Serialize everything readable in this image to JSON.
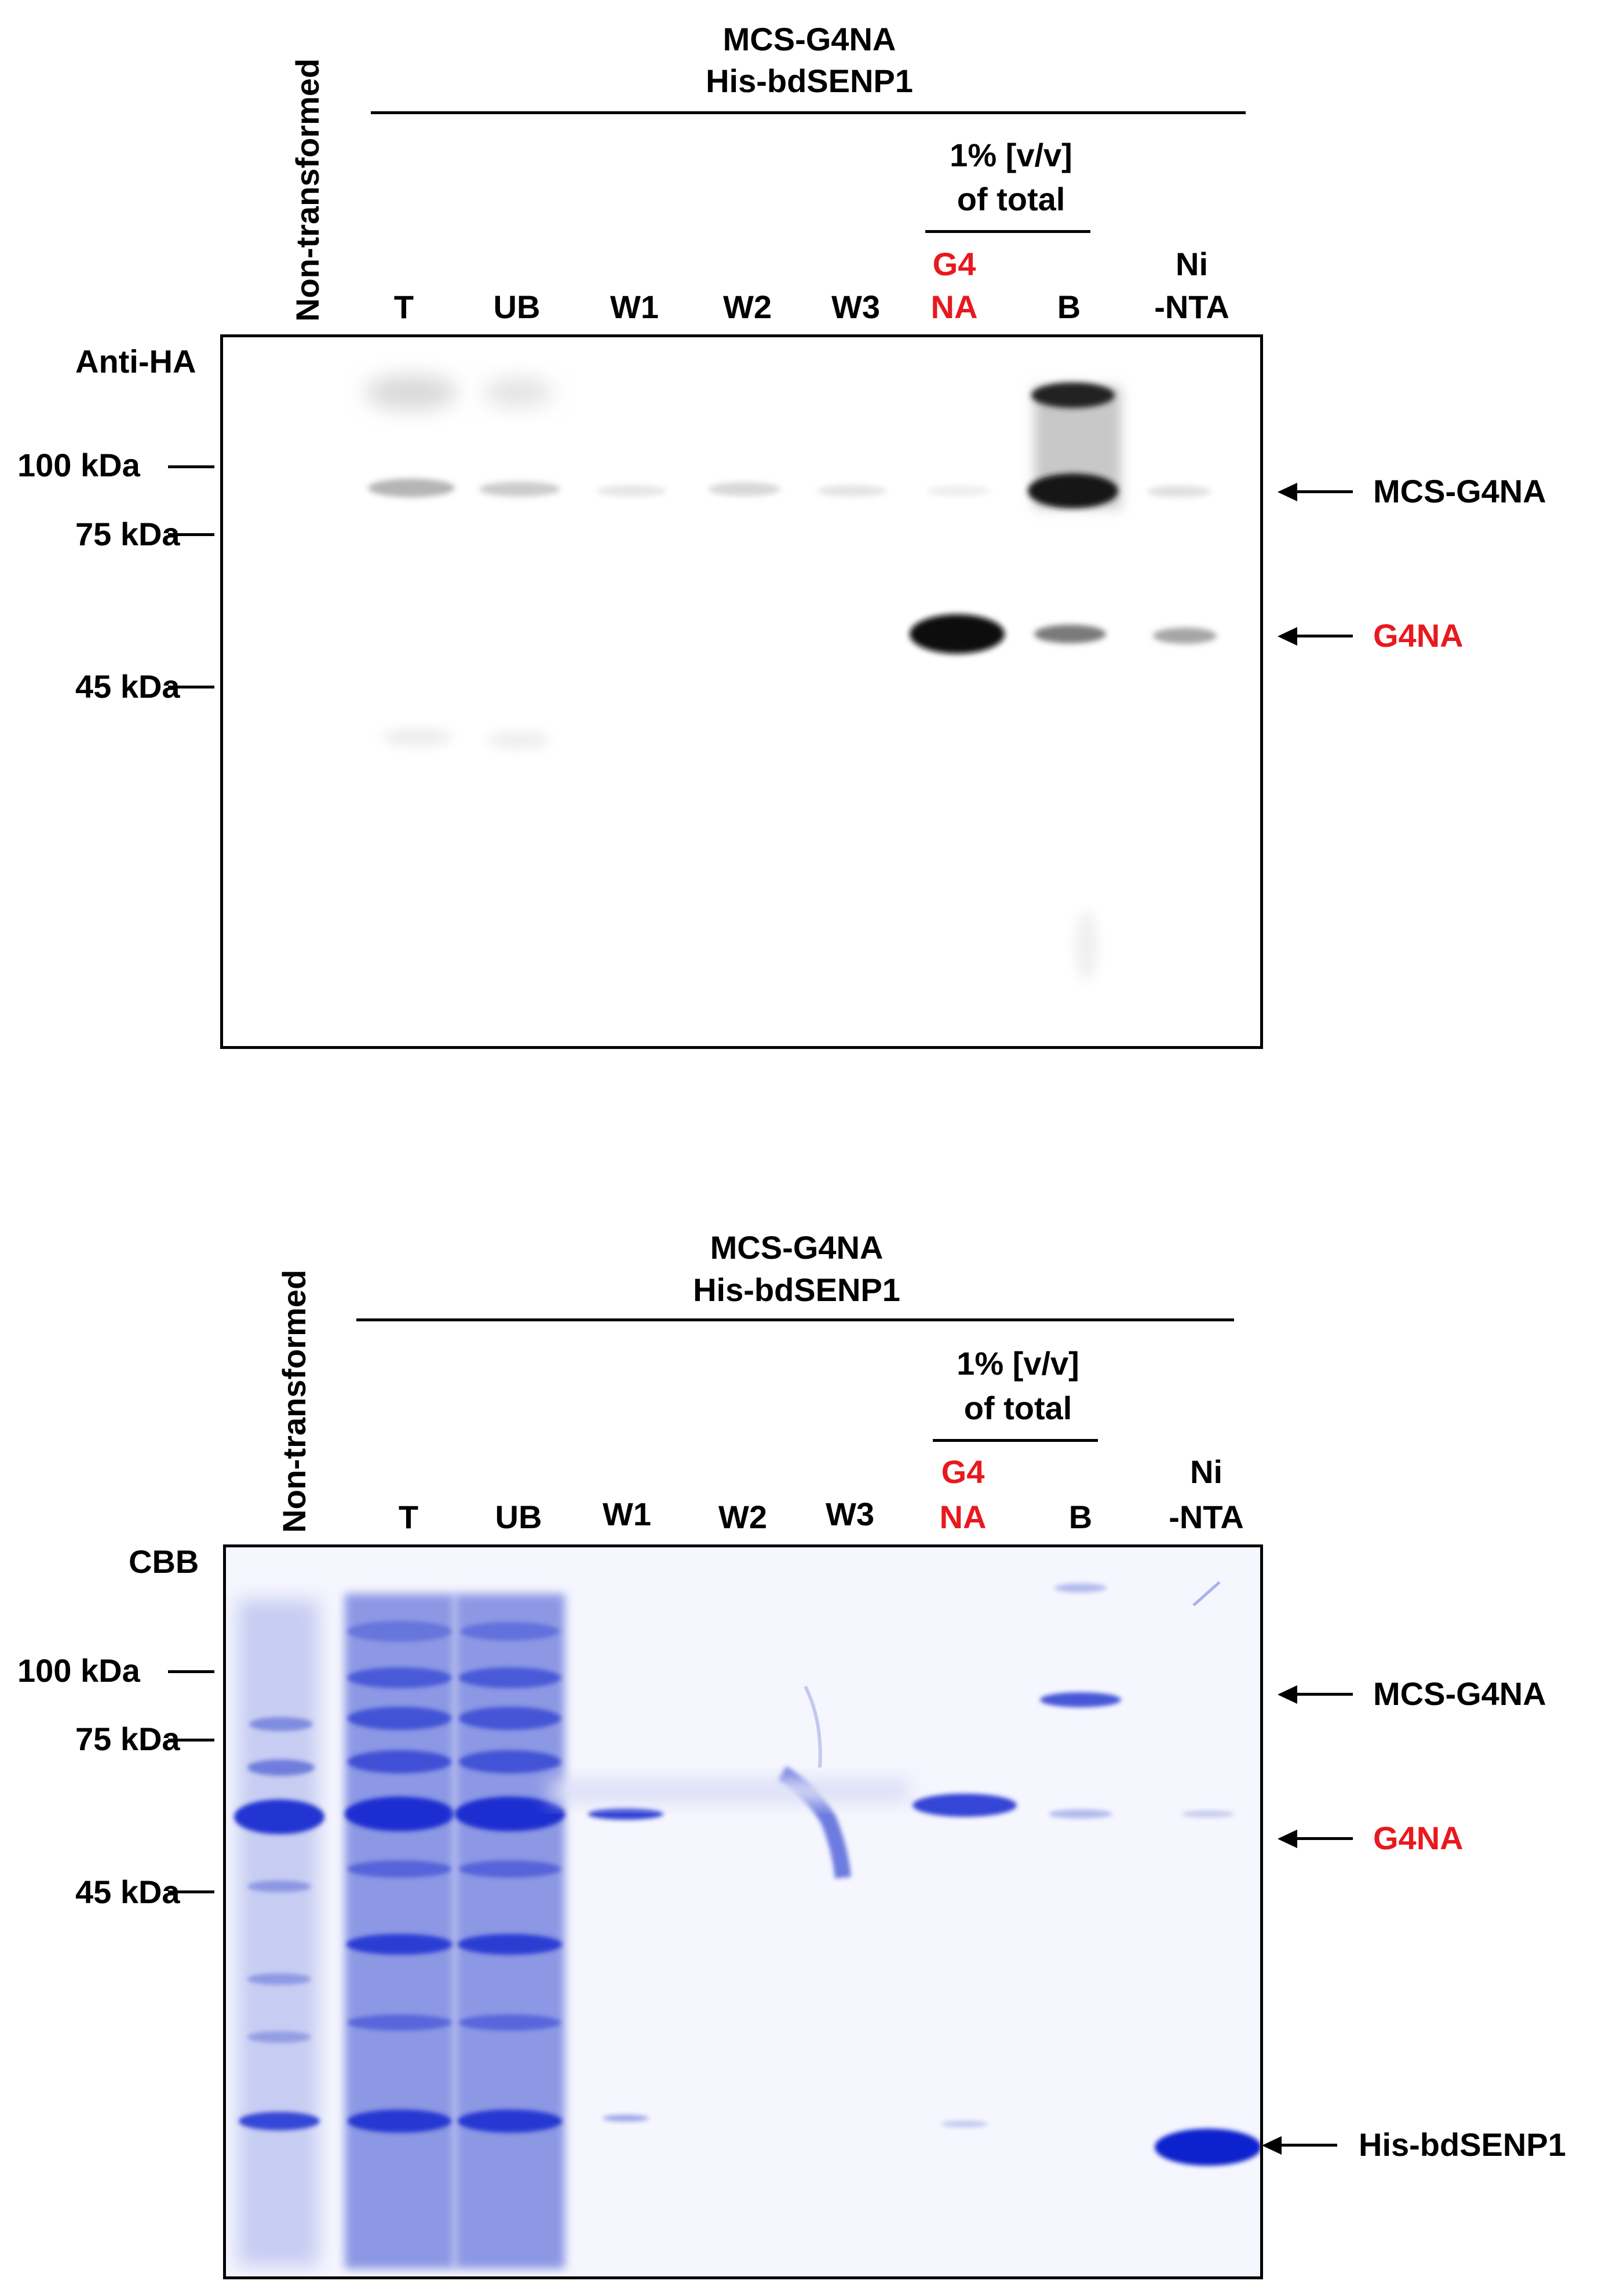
{
  "panels": [
    {
      "group_label_line1": "MCS-G4NA",
      "group_label_line2": "His-bdSENP1",
      "left_lane_label": "Non-transformed",
      "percent_label_line1": "1% [v/v]",
      "percent_label_line2": "of total",
      "lanes": [
        "T",
        "UB",
        "W1",
        "W2",
        "W3",
        "G4\nNA",
        "B",
        "Ni\n-NTA"
      ],
      "stain_label": "Anti-HA",
      "markers": [
        "100 kDa",
        "75 kDa",
        "45 kDa"
      ],
      "arrows": [
        "MCS-G4NA",
        "G4NA"
      ]
    },
    {
      "group_label_line1": "MCS-G4NA",
      "group_label_line2": "His-bdSENP1",
      "left_lane_label": "Non-transformed",
      "percent_label_line1": "1% [v/v]",
      "percent_label_line2": "of total",
      "lanes": [
        "T",
        "UB",
        "W1",
        "W2",
        "W3",
        "G4\nNA",
        "B",
        "Ni\n-NTA"
      ],
      "stain_label": "CBB",
      "markers": [
        "100 kDa",
        "75 kDa",
        "45 kDa"
      ],
      "arrows": [
        "MCS-G4NA",
        "G4NA",
        "His-bdSENP1"
      ]
    }
  ],
  "colors": {
    "highlight_red": "#e8191e",
    "cbb_blue": "#2a3fd6",
    "blot_band": "#111111"
  },
  "lane_text": {
    "p1": {
      "t": "T",
      "ub": "UB",
      "w1": "W1",
      "w2": "W2",
      "w3": "W3",
      "g4a": "G4",
      "g4b": "NA",
      "b": "B",
      "nia": "Ni",
      "nib": "-NTA"
    },
    "p2": {
      "t": "T",
      "ub": "UB",
      "w1": "W1",
      "w2": "W2",
      "w3": "W3",
      "g4a": "G4",
      "g4b": "NA",
      "b": "B",
      "nia": "Ni",
      "nib": "-NTA"
    }
  }
}
